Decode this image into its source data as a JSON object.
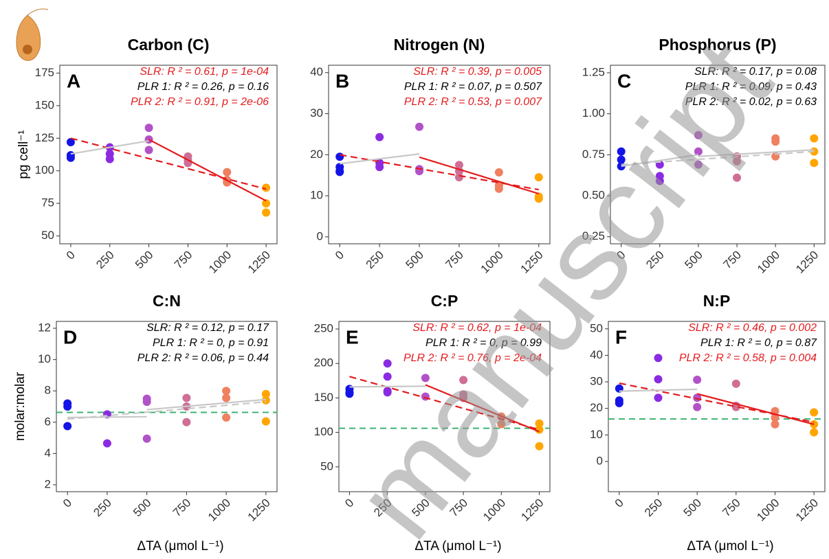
{
  "watermark": "manuscript",
  "chart_data": [
    {
      "type": "scatter",
      "title": "Carbon (C)",
      "panel": "A",
      "ylabel": "pg cell⁻¹",
      "xlim": [
        -70,
        1320
      ],
      "xticks": [
        0,
        250,
        500,
        750,
        1000,
        1250
      ],
      "ylim": [
        44,
        181
      ],
      "yticks": [
        50,
        75,
        100,
        125,
        150,
        175
      ],
      "annotations": [
        {
          "text": "SLR: R ² = 0.61, p = 1e-04",
          "color": "#e41a1c"
        },
        {
          "text": "PLR 1: R ² = 0.26, p = 0.16",
          "color": "#000000"
        },
        {
          "text": "PLR 2: R ² = 0.91, p = 2e-06",
          "color": "#e41a1c"
        }
      ],
      "series": [
        {
          "color": "#1414e6",
          "x": [
            0,
            0,
            0
          ],
          "values": [
            122,
            112,
            110
          ]
        },
        {
          "color": "#8a2be2",
          "x": [
            250,
            250,
            250
          ],
          "values": [
            118,
            113,
            109
          ]
        },
        {
          "color": "#b252c8",
          "x": [
            500,
            500,
            500
          ],
          "values": [
            133,
            116,
            124
          ]
        },
        {
          "color": "#cf6f96",
          "x": [
            750,
            750,
            750
          ],
          "values": [
            111,
            108,
            106
          ]
        },
        {
          "color": "#ef8060",
          "x": [
            1000,
            1000,
            1000
          ],
          "values": [
            99,
            93,
            91
          ]
        },
        {
          "color": "#ffa500",
          "x": [
            1250,
            1250,
            1250
          ],
          "values": [
            87,
            75,
            68
          ]
        }
      ],
      "fits": [
        {
          "x": [
            0,
            1250
          ],
          "values": [
            125,
            86
          ],
          "color": "#e41a1c",
          "dash": true
        },
        {
          "x": [
            0,
            500
          ],
          "values": [
            113,
            123
          ],
          "color": "#c8c8c8",
          "dash": false
        },
        {
          "x": [
            500,
            1250
          ],
          "values": [
            124,
            77
          ],
          "color": "#e41a1c",
          "dash": false
        }
      ]
    },
    {
      "type": "scatter",
      "title": "Nitrogen (N)",
      "panel": "B",
      "xlim": [
        -70,
        1320
      ],
      "xticks": [
        0,
        250,
        500,
        750,
        1000,
        1250
      ],
      "ylim": [
        -1.7,
        41.8
      ],
      "yticks": [
        0,
        10,
        20,
        30,
        40
      ],
      "annotations": [
        {
          "text": "SLR: R ² = 0.39, p = 0.005",
          "color": "#e41a1c"
        },
        {
          "text": "PLR 1: R ² = 0.07, p = 0.507",
          "color": "#000000"
        },
        {
          "text": "PLR 2: R ² = 0.53, p = 0.007",
          "color": "#e41a1c"
        }
      ],
      "series": [
        {
          "color": "#1414e6",
          "x": [
            0,
            0,
            0,
            0
          ],
          "values": [
            19.5,
            17,
            16,
            15.8
          ]
        },
        {
          "color": "#8a2be2",
          "x": [
            250,
            250,
            250
          ],
          "values": [
            24.3,
            18,
            17
          ]
        },
        {
          "color": "#b252c8",
          "x": [
            500,
            500,
            500
          ],
          "values": [
            26.8,
            16.5,
            16
          ]
        },
        {
          "color": "#cf6f96",
          "x": [
            750,
            750,
            750
          ],
          "values": [
            17.5,
            16,
            14.5
          ]
        },
        {
          "color": "#ef8060",
          "x": [
            1000,
            1000,
            1000
          ],
          "values": [
            15.7,
            12.5,
            11.7
          ]
        },
        {
          "color": "#ffa500",
          "x": [
            1250,
            1250,
            1250
          ],
          "values": [
            14.5,
            9.8,
            9.3
          ]
        }
      ],
      "fits": [
        {
          "x": [
            0,
            1250
          ],
          "values": [
            20,
            11.5
          ],
          "color": "#e41a1c",
          "dash": true
        },
        {
          "x": [
            0,
            500
          ],
          "values": [
            17.8,
            20.2
          ],
          "color": "#c8c8c8",
          "dash": false
        },
        {
          "x": [
            500,
            1250
          ],
          "values": [
            19.4,
            10.5
          ],
          "color": "#e41a1c",
          "dash": false
        }
      ]
    },
    {
      "type": "scatter",
      "title": "Phosphorus (P)",
      "panel": "C",
      "xlim": [
        -70,
        1320
      ],
      "xticks": [
        0,
        250,
        500,
        750,
        1000,
        1250
      ],
      "ylim": [
        0.207,
        1.296
      ],
      "yticks": [
        0.25,
        {
          "value": 0.5,
          "label": "0.50"
        },
        0.75,
        {
          "value": 1,
          "label": "1.00"
        },
        1.25
      ],
      "annotations": [
        {
          "text": "SLR: R ² = 0.17, p = 0.08",
          "color": "#000000"
        },
        {
          "text": "PLR 1: R ² = 0.09, p = 0.43",
          "color": "#000000"
        },
        {
          "text": "PLR 2: R ² = 0.02, p = 0.63",
          "color": "#000000"
        }
      ],
      "series": [
        {
          "color": "#1414e6",
          "x": [
            0,
            0,
            0
          ],
          "values": [
            0.77,
            0.72,
            0.68
          ]
        },
        {
          "color": "#8a2be2",
          "x": [
            250,
            250,
            250
          ],
          "values": [
            0.69,
            0.62,
            0.59
          ]
        },
        {
          "color": "#b252c8",
          "x": [
            500,
            500,
            500
          ],
          "values": [
            0.87,
            0.77,
            0.69
          ]
        },
        {
          "color": "#cf6f96",
          "x": [
            750,
            750,
            750
          ],
          "values": [
            0.74,
            0.71,
            0.61
          ]
        },
        {
          "color": "#ef8060",
          "x": [
            1000,
            1000,
            1000
          ],
          "values": [
            0.85,
            0.83,
            0.74
          ]
        },
        {
          "color": "#ffa500",
          "x": [
            1250,
            1250,
            1250
          ],
          "values": [
            0.85,
            0.77,
            0.7
          ]
        }
      ],
      "fits": [
        {
          "x": [
            0,
            1250
          ],
          "values": [
            0.69,
            0.77
          ],
          "color": "#c8c8c8",
          "dash": true
        },
        {
          "x": [
            0,
            500
          ],
          "values": [
            0.68,
            0.75
          ],
          "color": "#c8c8c8",
          "dash": false
        },
        {
          "x": [
            500,
            1250
          ],
          "values": [
            0.74,
            0.78
          ],
          "color": "#c8c8c8",
          "dash": false
        }
      ]
    },
    {
      "type": "scatter",
      "title": "C:N",
      "panel": "D",
      "ylabel": "molar:molar",
      "xlabel": "ΔTA (μmol L⁻¹)",
      "xlim": [
        -70,
        1320
      ],
      "xticks": [
        0,
        250,
        500,
        750,
        1000,
        1250
      ],
      "ylim": [
        1.56,
        12.44
      ],
      "yticks": [
        2,
        4,
        6,
        8,
        10,
        12
      ],
      "hline": {
        "value": 6.625,
        "color": "#3cb371"
      },
      "annotations": [
        {
          "text": "SLR: R ² = 0.12, p = 0.17",
          "color": "#000000"
        },
        {
          "text": "PLR 1: R ² = 0, p = 0.91",
          "color": "#000000"
        },
        {
          "text": "PLR 2: R ² = 0.06, p = 0.44",
          "color": "#000000"
        }
      ],
      "series": [
        {
          "color": "#1414e6",
          "x": [
            0,
            0,
            0
          ],
          "values": [
            7.2,
            7.0,
            5.75
          ]
        },
        {
          "color": "#8a2be2",
          "x": [
            250,
            250
          ],
          "values": [
            6.5,
            4.65
          ]
        },
        {
          "color": "#b252c8",
          "x": [
            500,
            500,
            500
          ],
          "values": [
            7.5,
            7.3,
            4.95
          ]
        },
        {
          "color": "#cf6f96",
          "x": [
            750,
            750,
            750
          ],
          "values": [
            7.55,
            7.0,
            6.0
          ]
        },
        {
          "color": "#ef8060",
          "x": [
            1000,
            1000,
            1000
          ],
          "values": [
            8.0,
            7.55,
            6.3
          ]
        },
        {
          "color": "#ffa500",
          "x": [
            1250,
            1250,
            1250
          ],
          "values": [
            7.8,
            7.4,
            6.05
          ]
        }
      ],
      "fits": [
        {
          "x": [
            0,
            1250
          ],
          "values": [
            6.2,
            7.3
          ],
          "color": "#c8c8c8",
          "dash": true
        },
        {
          "x": [
            0,
            500
          ],
          "values": [
            6.3,
            6.35
          ],
          "color": "#c8c8c8",
          "dash": false
        },
        {
          "x": [
            500,
            1250
          ],
          "values": [
            6.8,
            7.45
          ],
          "color": "#c8c8c8",
          "dash": false
        }
      ]
    },
    {
      "type": "scatter",
      "title": "C:P",
      "panel": "E",
      "xlabel": "ΔTA (μmol L⁻¹)",
      "xlim": [
        -70,
        1320
      ],
      "xticks": [
        0,
        250,
        500,
        750,
        1000,
        1250
      ],
      "ylim": [
        14,
        261
      ],
      "yticks": [
        50,
        100,
        150,
        200,
        250
      ],
      "hline": {
        "value": 106,
        "color": "#3cb371"
      },
      "annotations": [
        {
          "text": "SLR: R ² = 0.62, p = 1e-04",
          "color": "#e41a1c"
        },
        {
          "text": "PLR 1: R ² = 0, p = 0.99",
          "color": "#000000"
        },
        {
          "text": "PLR 2: R ² = 0.76, p = 2e-04",
          "color": "#e41a1c"
        }
      ],
      "series": [
        {
          "color": "#1414e6",
          "x": [
            0,
            0,
            0
          ],
          "values": [
            163,
            158,
            156
          ]
        },
        {
          "color": "#8a2be2",
          "x": [
            250,
            250,
            250,
            250
          ],
          "values": [
            200,
            181,
            160,
            158
          ]
        },
        {
          "color": "#b252c8",
          "x": [
            500,
            500
          ],
          "values": [
            179,
            152
          ]
        },
        {
          "color": "#cf6f96",
          "x": [
            750,
            750,
            750
          ],
          "values": [
            176,
            155,
            150
          ]
        },
        {
          "color": "#ef8060",
          "x": [
            1000,
            1000
          ],
          "values": [
            123,
            112
          ]
        },
        {
          "color": "#ffa500",
          "x": [
            1250,
            1250,
            1250
          ],
          "values": [
            113,
            104,
            80
          ]
        }
      ],
      "fits": [
        {
          "x": [
            0,
            1250
          ],
          "values": [
            181,
            104
          ],
          "color": "#e41a1c",
          "dash": true
        },
        {
          "x": [
            0,
            500
          ],
          "values": [
            166,
            167
          ],
          "color": "#c8c8c8",
          "dash": false
        },
        {
          "x": [
            500,
            1250
          ],
          "values": [
            169,
            101
          ],
          "color": "#e41a1c",
          "dash": false
        }
      ]
    },
    {
      "type": "scatter",
      "title": "N:P",
      "panel": "F",
      "xlabel": "ΔTA (μmol L⁻¹)",
      "xlim": [
        -70,
        1320
      ],
      "xticks": [
        0,
        250,
        500,
        750,
        1000,
        1250
      ],
      "ylim": [
        -11.4,
        52.8
      ],
      "yticks": [
        0,
        10,
        20,
        30,
        40,
        50
      ],
      "hline": {
        "value": 16,
        "color": "#3cb371"
      },
      "annotations": [
        {
          "text": "SLR: R ² = 0.46, p = 0.002",
          "color": "#e41a1c"
        },
        {
          "text": "PLR 1: R ² = 0, p = 0.87",
          "color": "#000000"
        },
        {
          "text": "PLR 2: R ² = 0.58, p = 0.004",
          "color": "#e41a1c"
        }
      ],
      "series": [
        {
          "color": "#1414e6",
          "x": [
            0,
            0,
            0
          ],
          "values": [
            27.5,
            23,
            22
          ]
        },
        {
          "color": "#8a2be2",
          "x": [
            250,
            250,
            250
          ],
          "values": [
            39,
            31,
            24
          ]
        },
        {
          "color": "#b252c8",
          "x": [
            500,
            500,
            500
          ],
          "values": [
            30.8,
            24,
            20.5
          ]
        },
        {
          "color": "#cf6f96",
          "x": [
            750,
            750,
            750
          ],
          "values": [
            29.3,
            21,
            20.5
          ]
        },
        {
          "color": "#ef8060",
          "x": [
            1000,
            1000,
            1000
          ],
          "values": [
            19,
            16.5,
            14
          ]
        },
        {
          "color": "#ffa500",
          "x": [
            1250,
            1250,
            1250
          ],
          "values": [
            18.5,
            14,
            11
          ]
        }
      ],
      "fits": [
        {
          "x": [
            0,
            1250
          ],
          "values": [
            29.5,
            14.8
          ],
          "color": "#e41a1c",
          "dash": true
        },
        {
          "x": [
            0,
            500
          ],
          "values": [
            26.5,
            27.2
          ],
          "color": "#c8c8c8",
          "dash": false
        },
        {
          "x": [
            500,
            1250
          ],
          "values": [
            25.5,
            14
          ],
          "color": "#e41a1c",
          "dash": false
        }
      ]
    }
  ]
}
